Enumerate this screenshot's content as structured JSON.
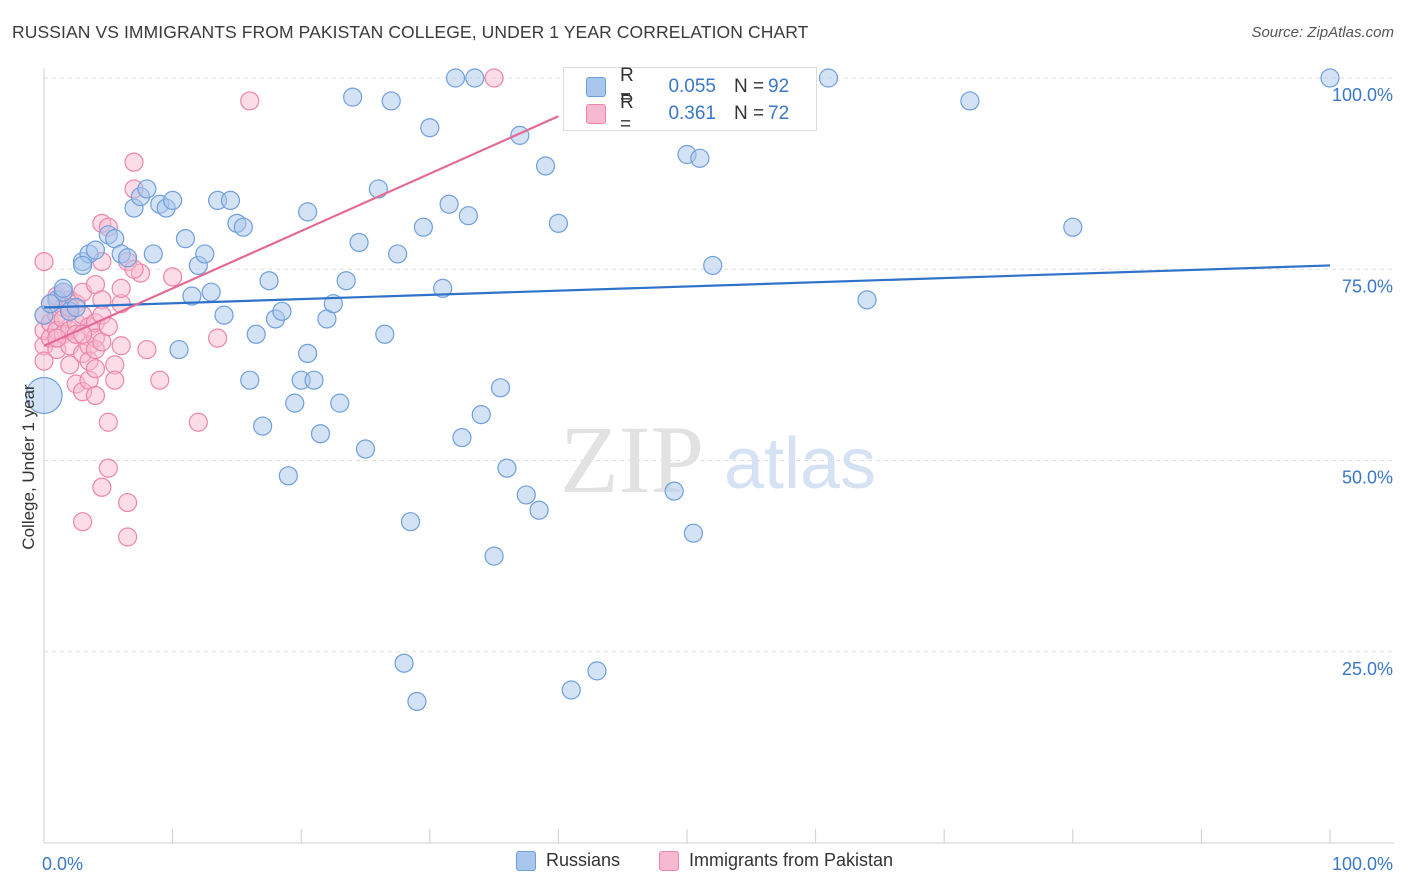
{
  "title": "RUSSIAN VS IMMIGRANTS FROM PAKISTAN COLLEGE, UNDER 1 YEAR CORRELATION CHART",
  "source": "Source: ZipAtlas.com",
  "watermark": {
    "zip": "ZIP",
    "atlas": "atlas"
  },
  "colors": {
    "blue_fill": "#a9c6ec",
    "blue_stroke": "#6f9fdc",
    "blue_line": "#2f72c9",
    "pink_fill": "#f7b9cf",
    "pink_stroke": "#ee85a9",
    "pink_line": "#e46a96",
    "axis_text": "#3a77c7",
    "grid": "#dddddd"
  },
  "legend_top": {
    "rows": [
      {
        "r_label": "R =",
        "r_value": "0.055",
        "n_label": "N =",
        "n_value": "92",
        "series": "blue"
      },
      {
        "r_label": "R =",
        "r_value": "0.361",
        "n_label": "N =",
        "n_value": "72",
        "series": "pink"
      }
    ]
  },
  "legend_bottom": {
    "items": [
      {
        "label": "Russians",
        "series": "blue"
      },
      {
        "label": "Immigrants from Pakistan",
        "series": "pink"
      }
    ]
  },
  "chart_data": {
    "type": "scatter",
    "title": "RUSSIAN VS IMMIGRANTS FROM PAKISTAN COLLEGE, UNDER 1 YEAR CORRELATION CHART",
    "xlabel": "",
    "ylabel": "College, Under 1 year",
    "xlim": [
      0,
      100
    ],
    "ylim": [
      0,
      100
    ],
    "x_tick_labels": [
      "0.0%",
      "100.0%"
    ],
    "y_tick_labels": [
      "25.0%",
      "50.0%",
      "75.0%",
      "100.0%"
    ],
    "y_ticks": [
      25,
      50,
      75,
      100
    ],
    "grid": true,
    "legend_placement": "bottom",
    "series": [
      {
        "name": "Russians",
        "r": 0.055,
        "n": 92,
        "trend": {
          "x": [
            0,
            100
          ],
          "y": [
            70.0,
            75.5
          ]
        },
        "points": [
          [
            0,
            58.5
          ],
          [
            0,
            69
          ],
          [
            1,
            71
          ],
          [
            1.5,
            72
          ],
          [
            2,
            69.5
          ],
          [
            3,
            76
          ],
          [
            3.5,
            77
          ],
          [
            4,
            77.5
          ],
          [
            5,
            79.5
          ],
          [
            5.5,
            79
          ],
          [
            6,
            77
          ],
          [
            6.5,
            76.5
          ],
          [
            7,
            83
          ],
          [
            7.5,
            84.5
          ],
          [
            8,
            85.5
          ],
          [
            8.5,
            77
          ],
          [
            9,
            83.5
          ],
          [
            9.5,
            83
          ],
          [
            10,
            84
          ],
          [
            10.5,
            64.5
          ],
          [
            11,
            79
          ],
          [
            11.5,
            71.5
          ],
          [
            12,
            75.5
          ],
          [
            12.5,
            77
          ],
          [
            13,
            72
          ],
          [
            13.5,
            84
          ],
          [
            14,
            69
          ],
          [
            14.5,
            84
          ],
          [
            15,
            81
          ],
          [
            15.5,
            80.5
          ],
          [
            16,
            60.5
          ],
          [
            16.5,
            66.5
          ],
          [
            17,
            54.5
          ],
          [
            17.5,
            73.5
          ],
          [
            18,
            68.5
          ],
          [
            18.5,
            69.5
          ],
          [
            19,
            48
          ],
          [
            19.5,
            57.5
          ],
          [
            20,
            60.5
          ],
          [
            20.5,
            64
          ],
          [
            20.5,
            82.5
          ],
          [
            21,
            60.5
          ],
          [
            21.5,
            53.5
          ],
          [
            22,
            68.5
          ],
          [
            22.5,
            70.5
          ],
          [
            23,
            57.5
          ],
          [
            23.5,
            73.5
          ],
          [
            24,
            97.5
          ],
          [
            24.5,
            78.5
          ],
          [
            25,
            51.5
          ],
          [
            26,
            85.5
          ],
          [
            26.5,
            66.5
          ],
          [
            27,
            97
          ],
          [
            27.5,
            77
          ],
          [
            28,
            23.5
          ],
          [
            28.5,
            42
          ],
          [
            29,
            18.5
          ],
          [
            29.5,
            80.5
          ],
          [
            30,
            93.5
          ],
          [
            31,
            72.5
          ],
          [
            31.5,
            83.5
          ],
          [
            32,
            100
          ],
          [
            32.5,
            53
          ],
          [
            33,
            82
          ],
          [
            33.5,
            100
          ],
          [
            34,
            56
          ],
          [
            35,
            37.5
          ],
          [
            35.5,
            59.5
          ],
          [
            36,
            49
          ],
          [
            37,
            92.5
          ],
          [
            37.5,
            45.5
          ],
          [
            38.5,
            43.5
          ],
          [
            39,
            88.5
          ],
          [
            40,
            81
          ],
          [
            41,
            20
          ],
          [
            43,
            22.5
          ],
          [
            47,
            100
          ],
          [
            49,
            46
          ],
          [
            50,
            90
          ],
          [
            50.5,
            40.5
          ],
          [
            51,
            89.5
          ],
          [
            52,
            75.5
          ],
          [
            59,
            100
          ],
          [
            61,
            100
          ],
          [
            64,
            71
          ],
          [
            72,
            97
          ],
          [
            80,
            80.5
          ],
          [
            100,
            100
          ],
          [
            1.5,
            72.5
          ],
          [
            3,
            75.5
          ],
          [
            0.5,
            70.5
          ],
          [
            2.5,
            70
          ]
        ]
      },
      {
        "name": "Immigrants from Pakistan",
        "r": 0.361,
        "n": 72,
        "trend": {
          "x": [
            0,
            40
          ],
          "y": [
            65.0,
            95.0
          ]
        },
        "points": [
          [
            0,
            65
          ],
          [
            0,
            67
          ],
          [
            0,
            69
          ],
          [
            0.5,
            70.5
          ],
          [
            0.5,
            68
          ],
          [
            0.5,
            66
          ],
          [
            1,
            71.5
          ],
          [
            1,
            69
          ],
          [
            1,
            67
          ],
          [
            1,
            64.5
          ],
          [
            1.5,
            72
          ],
          [
            1.5,
            70
          ],
          [
            1.5,
            68.5
          ],
          [
            1.5,
            66.5
          ],
          [
            2,
            71
          ],
          [
            2,
            69.5
          ],
          [
            2,
            67
          ],
          [
            2,
            65
          ],
          [
            2,
            62.5
          ],
          [
            2.5,
            70.5
          ],
          [
            2.5,
            68
          ],
          [
            2.5,
            66.5
          ],
          [
            2.5,
            60
          ],
          [
            3,
            72
          ],
          [
            3,
            69
          ],
          [
            3,
            64
          ],
          [
            3,
            59
          ],
          [
            3,
            42
          ],
          [
            3.5,
            67.5
          ],
          [
            3.5,
            65
          ],
          [
            3.5,
            63
          ],
          [
            3.5,
            60.5
          ],
          [
            4,
            73
          ],
          [
            4,
            68
          ],
          [
            4,
            66
          ],
          [
            4,
            64.5
          ],
          [
            4,
            62
          ],
          [
            4,
            58.5
          ],
          [
            4.5,
            81
          ],
          [
            4.5,
            76
          ],
          [
            4.5,
            71
          ],
          [
            4.5,
            69
          ],
          [
            4.5,
            65.5
          ],
          [
            4.5,
            46.5
          ],
          [
            5,
            80.5
          ],
          [
            5,
            67.5
          ],
          [
            5,
            55
          ],
          [
            5,
            49
          ],
          [
            5.5,
            62.5
          ],
          [
            5.5,
            60.5
          ],
          [
            6,
            70.5
          ],
          [
            6,
            65
          ],
          [
            6.5,
            76
          ],
          [
            6.5,
            44.5
          ],
          [
            6.5,
            40
          ],
          [
            7,
            85.5
          ],
          [
            7,
            89
          ],
          [
            7.5,
            74.5
          ],
          [
            8,
            64.5
          ],
          [
            9,
            60.5
          ],
          [
            10,
            74
          ],
          [
            12,
            55
          ],
          [
            13.5,
            66
          ],
          [
            16,
            97
          ],
          [
            35,
            100
          ],
          [
            1,
            66
          ],
          [
            0,
            76
          ],
          [
            2,
            70
          ],
          [
            3,
            66.5
          ],
          [
            6,
            72.5
          ],
          [
            7,
            75
          ],
          [
            0,
            63
          ]
        ]
      }
    ]
  }
}
